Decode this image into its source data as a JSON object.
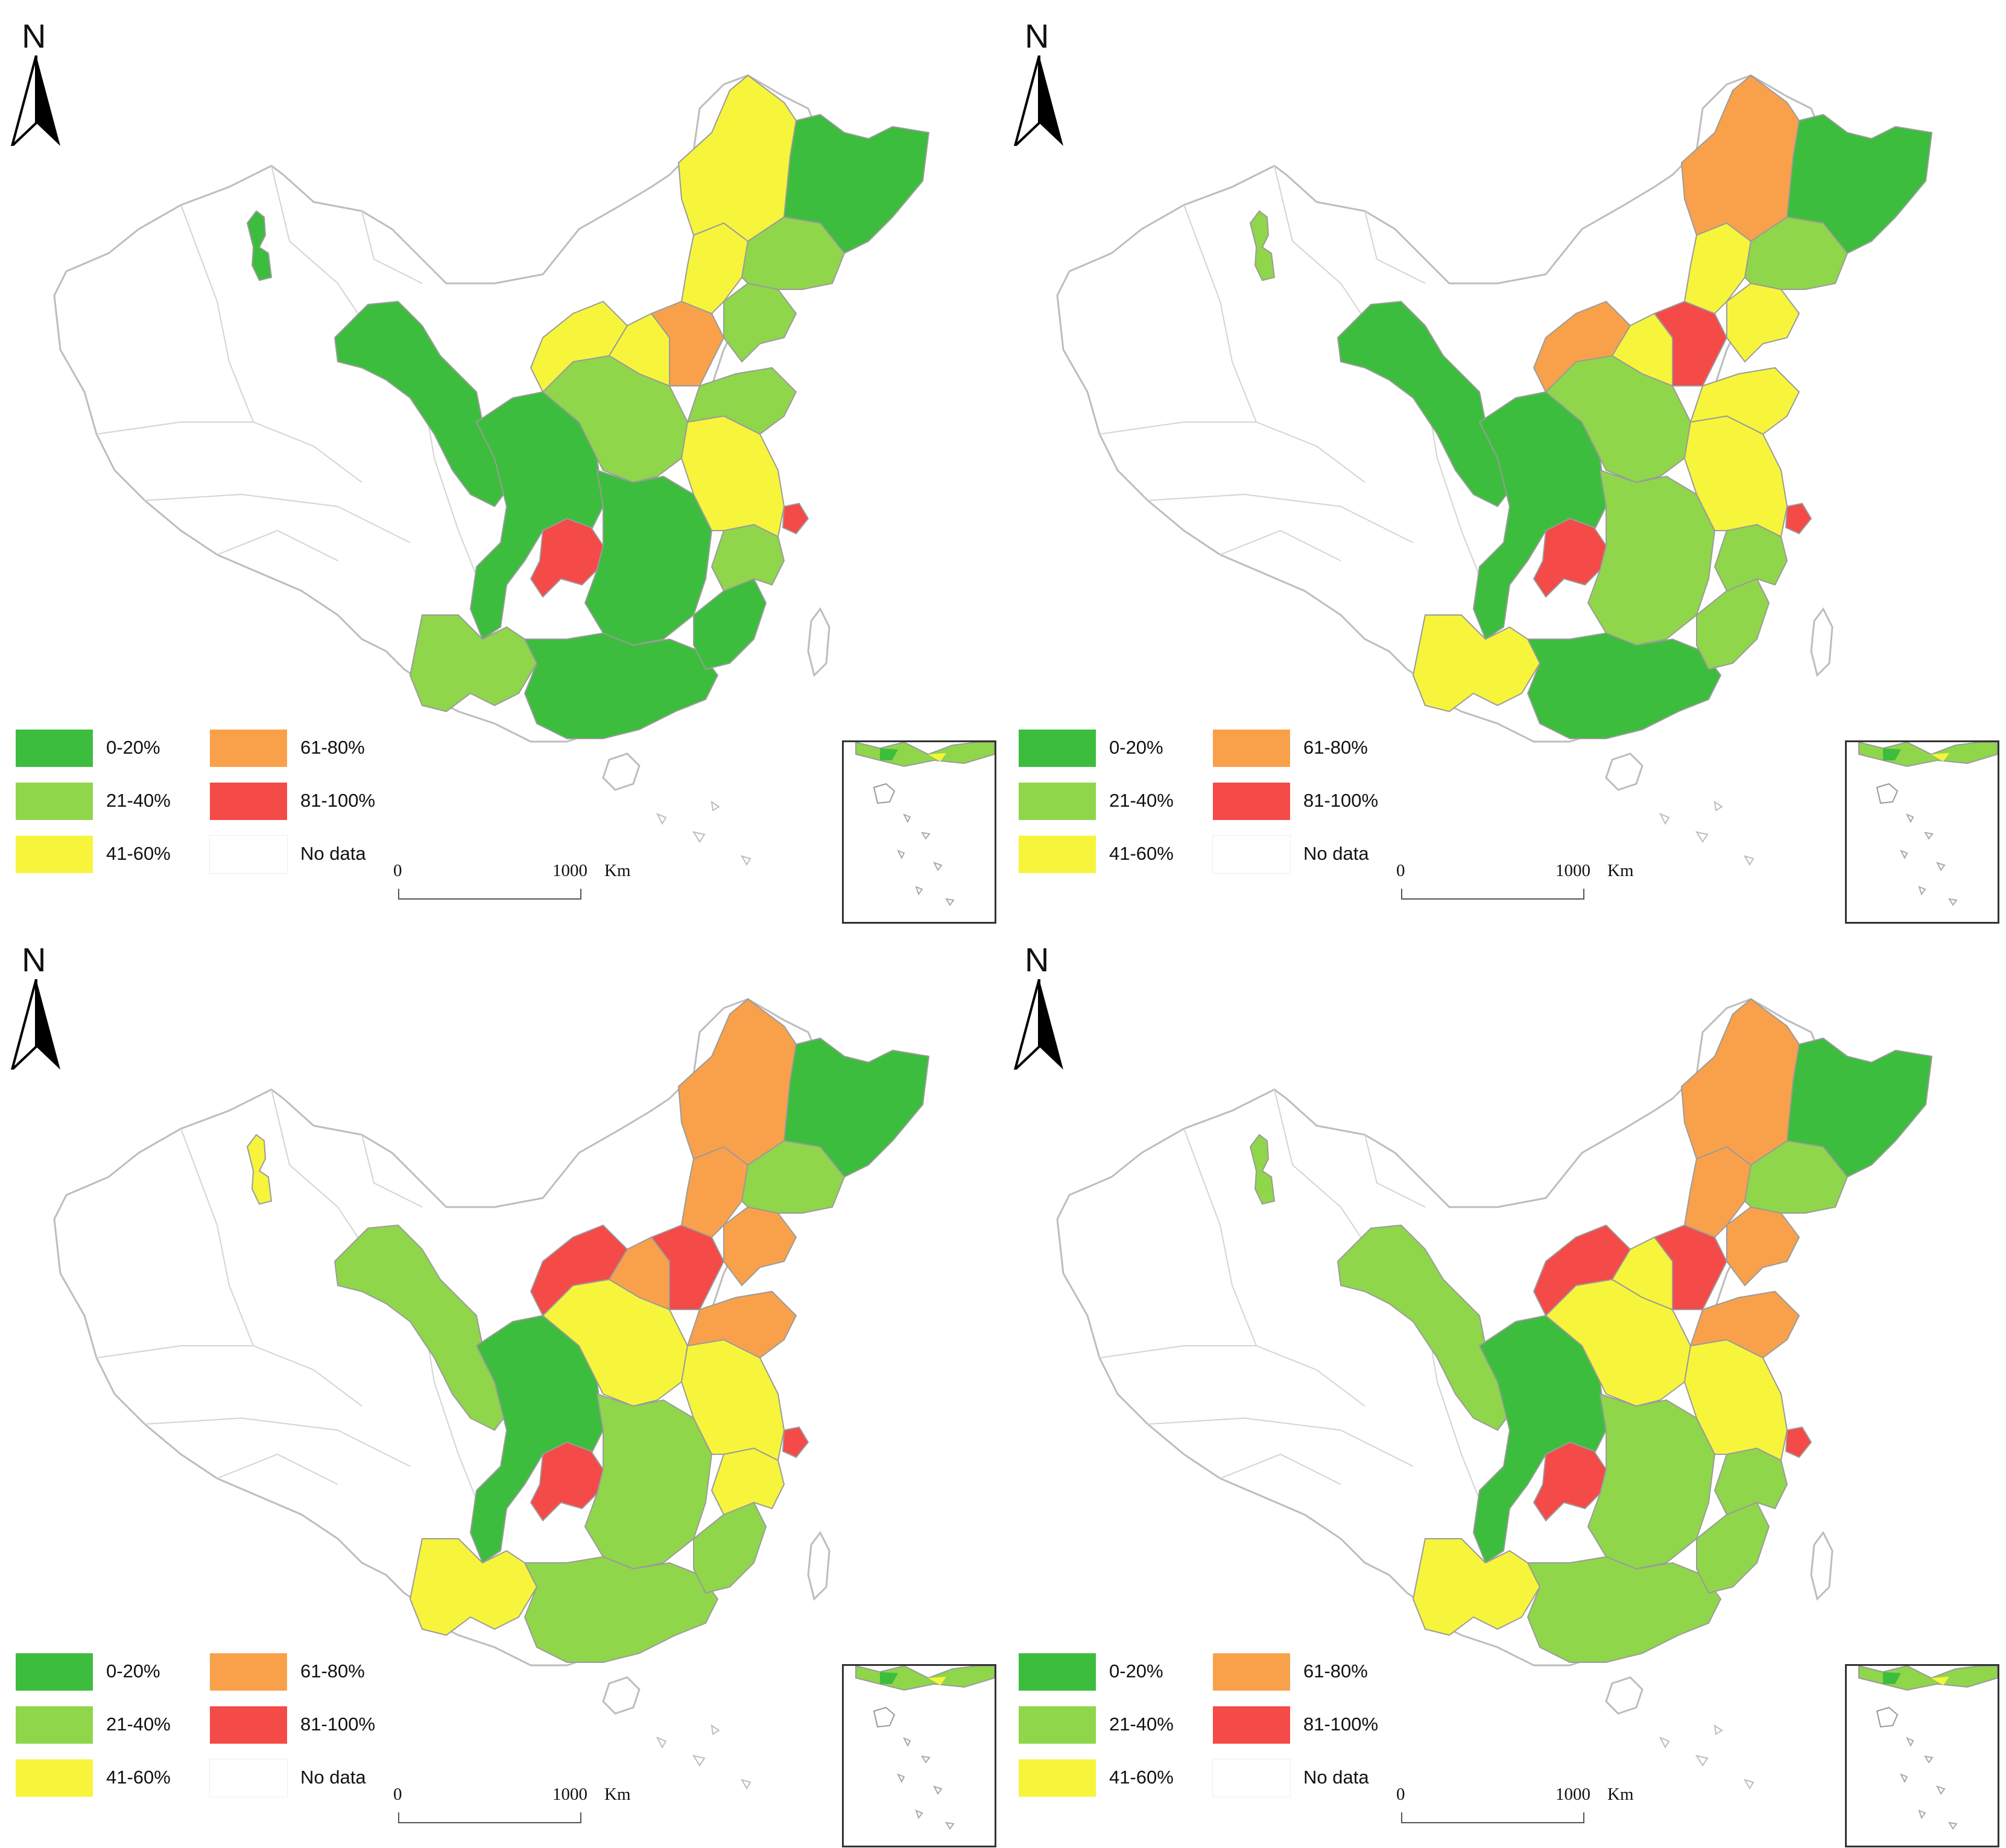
{
  "colors": {
    "c1": "#3dbd3d",
    "c2": "#8fd64a",
    "c3": "#f6f53c",
    "c4": "#f9a14a",
    "c5": "#f44a48",
    "c0": "#ffffff",
    "outline": "#bdbdbd"
  },
  "north_label": "N",
  "legend": [
    {
      "key": "c1",
      "label": "0-20%"
    },
    {
      "key": "c2",
      "label": "21-40%"
    },
    {
      "key": "c3",
      "label": "41-60%"
    },
    {
      "key": "c4",
      "label": "61-80%"
    },
    {
      "key": "c5",
      "label": "81-100%"
    },
    {
      "key": "c0",
      "label": "No data"
    }
  ],
  "scale": {
    "start": "0",
    "end": "1000",
    "unit": "Km"
  },
  "panels": [
    {
      "id": "p0",
      "regions": {
        "northeast": "c3",
        "heilongjiang": "c1",
        "jilin": "c2",
        "liaoning": "c2",
        "inner_mongolia_e": "c3",
        "beijing_hebei": "c4",
        "north_china": "c3",
        "shanxi": "c3",
        "shandong": "c2",
        "shaanxi_henan": "c2",
        "gansu_west": "c1",
        "xinjiang_spot": "c1",
        "chongqing": "c5",
        "sichuan": "c1",
        "hubei_hunan": "c1",
        "jiangsu_anhui": "c3",
        "shanghai": "c5",
        "zhejiang": "c2",
        "fujian": "c1",
        "guangdong_guangxi": "c1",
        "yunnan_guizhou": "c2"
      }
    },
    {
      "id": "p1",
      "regions": {
        "northeast": "c4",
        "heilongjiang": "c1",
        "jilin": "c2",
        "liaoning": "c3",
        "inner_mongolia_e": "c3",
        "beijing_hebei": "c5",
        "north_china": "c4",
        "shanxi": "c3",
        "shandong": "c3",
        "shaanxi_henan": "c2",
        "gansu_west": "c1",
        "xinjiang_spot": "c2",
        "chongqing": "c5",
        "sichuan": "c1",
        "hubei_hunan": "c2",
        "jiangsu_anhui": "c3",
        "shanghai": "c5",
        "zhejiang": "c2",
        "fujian": "c2",
        "guangdong_guangxi": "c1",
        "yunnan_guizhou": "c3"
      }
    },
    {
      "id": "p2",
      "regions": {
        "northeast": "c4",
        "heilongjiang": "c1",
        "jilin": "c2",
        "liaoning": "c4",
        "inner_mongolia_e": "c4",
        "beijing_hebei": "c5",
        "north_china": "c5",
        "shanxi": "c4",
        "shandong": "c4",
        "shaanxi_henan": "c3",
        "gansu_west": "c2",
        "xinjiang_spot": "c3",
        "chongqing": "c5",
        "sichuan": "c1",
        "hubei_hunan": "c2",
        "jiangsu_anhui": "c3",
        "shanghai": "c5",
        "zhejiang": "c3",
        "fujian": "c2",
        "guangdong_guangxi": "c2",
        "yunnan_guizhou": "c3"
      }
    },
    {
      "id": "p3",
      "regions": {
        "northeast": "c4",
        "heilongjiang": "c1",
        "jilin": "c2",
        "liaoning": "c4",
        "inner_mongolia_e": "c4",
        "beijing_hebei": "c5",
        "north_china": "c5",
        "shanxi": "c3",
        "shandong": "c4",
        "shaanxi_henan": "c3",
        "gansu_west": "c2",
        "xinjiang_spot": "c2",
        "chongqing": "c5",
        "sichuan": "c1",
        "hubei_hunan": "c2",
        "jiangsu_anhui": "c3",
        "shanghai": "c5",
        "zhejiang": "c2",
        "fujian": "c2",
        "guangdong_guangxi": "c2",
        "yunnan_guizhou": "c3"
      }
    }
  ]
}
